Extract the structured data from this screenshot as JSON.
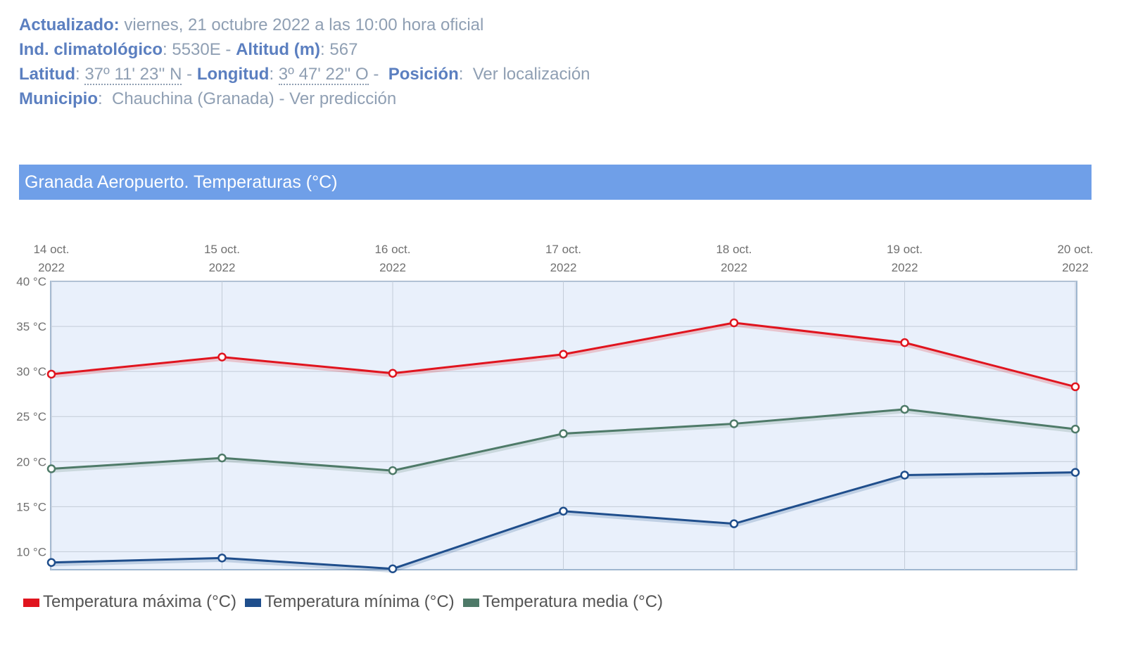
{
  "info": {
    "actualizado_label": "Actualizado:",
    "actualizado_value": " viernes, 21 octubre 2022 a las 10:00 hora oficial",
    "indicativo_label": "Ind. climatológico",
    "indicativo_value": ": 5530E - ",
    "altitud_label": "Altitud (m)",
    "altitud_value": ": 567",
    "latitud_label": "Latitud",
    "latitud_value": "37º 11' 23'' N",
    "longitud_label": "Longitud",
    "longitud_value": "3º 47' 22'' O",
    "posicion_label": "Posición",
    "posicion_link": "Ver localización",
    "municipio_label": "Municipio",
    "municipio_value": "Chauchina (Granada)",
    "prediccion_link": "Ver predicción"
  },
  "chart_data": {
    "type": "line",
    "title": "Granada Aeropuerto. Temperaturas (°C)",
    "categories": [
      "14 oct. 2022",
      "15 oct. 2022",
      "16 oct. 2022",
      "17 oct. 2022",
      "18 oct. 2022",
      "19 oct. 2022",
      "20 oct. 2022"
    ],
    "category_lines": [
      [
        "14 oct.",
        "2022"
      ],
      [
        "15 oct.",
        "2022"
      ],
      [
        "16 oct.",
        "2022"
      ],
      [
        "17 oct.",
        "2022"
      ],
      [
        "18 oct.",
        "2022"
      ],
      [
        "19 oct.",
        "2022"
      ],
      [
        "20 oct.",
        "2022"
      ]
    ],
    "y_ticks": [
      "40 °C",
      "35 °C",
      "30 °C",
      "25 °C",
      "20 °C",
      "15 °C",
      "10 °C"
    ],
    "y_tick_values": [
      40,
      35,
      30,
      25,
      20,
      15,
      10
    ],
    "ylim": [
      8,
      40
    ],
    "x_axis_position": "top",
    "grid": true,
    "legend_position": "bottom-left",
    "series": [
      {
        "name": "Temperatura máxima (°C)",
        "color": "#e0141e",
        "values": [
          29.7,
          31.6,
          29.8,
          31.9,
          35.4,
          33.2,
          28.3
        ]
      },
      {
        "name": "Temperatura mínima (°C)",
        "color": "#1f4e8c",
        "values": [
          8.8,
          9.3,
          8.1,
          14.5,
          13.1,
          18.5,
          18.8
        ]
      },
      {
        "name": "Temperatura media (°C)",
        "color": "#4e7a68",
        "values": [
          19.2,
          20.4,
          19.0,
          23.1,
          24.2,
          25.8,
          23.6
        ]
      }
    ]
  }
}
